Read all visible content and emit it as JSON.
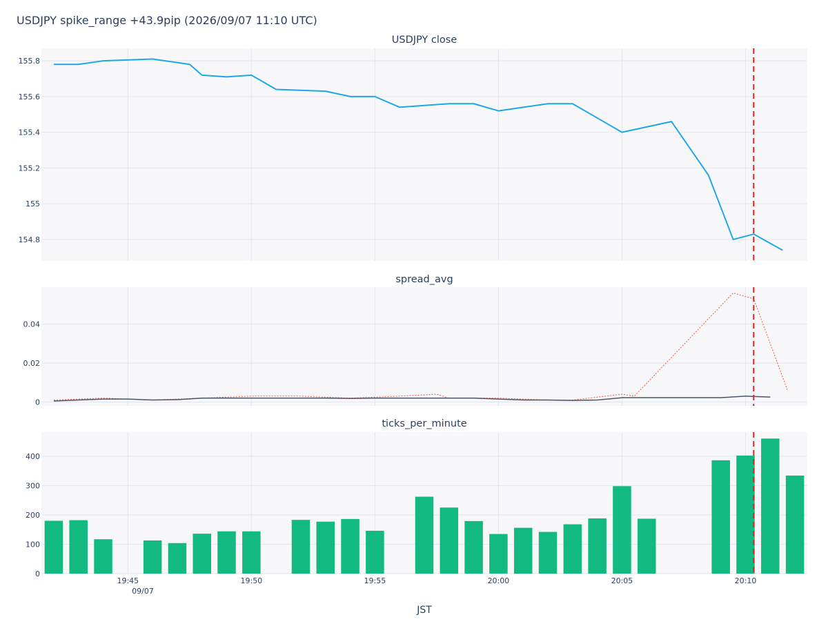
{
  "title": "USDJPY spike_range +43.9pip (2026/09/07 11:10 UTC)",
  "xlabel": "JST",
  "x_ticks": [
    "19:45",
    "19:50",
    "19:55",
    "20:00",
    "20:05",
    "20:10"
  ],
  "x_tick_date": "09/07",
  "x_domain_minutes": [
    1181.5,
    1212.5
  ],
  "spike_minute": 1210.33,
  "colors": {
    "close_line": "#1ea7e8",
    "spread_line": "#4b5567",
    "spread_dotted": "#ef553b",
    "bars": "#12b981",
    "spike": "#d62728"
  },
  "chart_data": [
    {
      "type": "line",
      "title": "USDJPY close",
      "x": [
        1182,
        1183,
        1184,
        1186,
        1187.5,
        1188,
        1189,
        1190,
        1191,
        1193,
        1194,
        1195,
        1196,
        1198,
        1199,
        1200,
        1201,
        1202,
        1203,
        1204,
        1205,
        1207,
        1208.5,
        1209.5,
        1210.33,
        1211.5
      ],
      "values": [
        155.78,
        155.78,
        155.8,
        155.81,
        155.78,
        155.72,
        155.71,
        155.72,
        155.64,
        155.63,
        155.6,
        155.6,
        155.54,
        155.56,
        155.56,
        155.52,
        155.54,
        155.56,
        155.56,
        155.48,
        155.4,
        155.46,
        155.16,
        154.8,
        154.83,
        154.74
      ],
      "ylim": [
        154.68,
        155.87
      ],
      "y_ticks": [
        "154.8",
        "155",
        "155.2",
        "155.4",
        "155.6",
        "155.8"
      ],
      "y_tick_values": [
        154.8,
        155.0,
        155.2,
        155.4,
        155.6,
        155.8
      ]
    },
    {
      "type": "line",
      "title": "spread_avg",
      "x": [
        1182,
        1183,
        1184,
        1185,
        1186,
        1187,
        1188,
        1189,
        1190,
        1191,
        1192,
        1193,
        1194,
        1195,
        1196,
        1197,
        1198,
        1199,
        1200,
        1201,
        1202,
        1203,
        1204,
        1205,
        1206,
        1207,
        1208,
        1209,
        1210,
        1211
      ],
      "values": [
        0.0005,
        0.001,
        0.0015,
        0.0015,
        0.001,
        0.0012,
        0.002,
        0.002,
        0.002,
        0.002,
        0.002,
        0.002,
        0.0018,
        0.002,
        0.002,
        0.002,
        0.002,
        0.002,
        0.0015,
        0.001,
        0.001,
        0.0008,
        0.001,
        0.0022,
        0.0022,
        0.0022,
        0.0022,
        0.0022,
        0.003,
        0.0025
      ],
      "dotted_x": [
        1182,
        1184,
        1186,
        1188,
        1190,
        1192,
        1194,
        1196,
        1197.5,
        1198,
        1200,
        1202,
        1203,
        1205,
        1205.5,
        1209.5,
        1210.33,
        1211.7
      ],
      "dotted_values": [
        0.001,
        0.002,
        0.001,
        0.002,
        0.003,
        0.003,
        0.002,
        0.003,
        0.004,
        0.002,
        0.002,
        0.001,
        0.001,
        0.004,
        0.003,
        0.056,
        0.053,
        0.006
      ],
      "ylim": [
        -0.002,
        0.059
      ],
      "y_ticks": [
        "0",
        "0.02",
        "0.04"
      ],
      "y_tick_values": [
        0,
        0.02,
        0.04
      ]
    },
    {
      "type": "bar",
      "title": "ticks_per_minute",
      "x": [
        1182,
        1183,
        1184,
        1186,
        1187,
        1188,
        1189,
        1190,
        1192,
        1193,
        1194,
        1195,
        1197,
        1198,
        1199,
        1200,
        1201,
        1202,
        1203,
        1204,
        1205,
        1206,
        1209,
        1210,
        1211,
        1212
      ],
      "values": [
        180,
        182,
        117,
        113,
        104,
        136,
        144,
        144,
        183,
        177,
        186,
        146,
        262,
        225,
        179,
        135,
        156,
        142,
        168,
        188,
        298,
        187,
        386,
        402,
        460,
        334
      ],
      "ylim": [
        0,
        482
      ],
      "y_ticks": [
        "0",
        "100",
        "200",
        "300",
        "400"
      ],
      "y_tick_values": [
        0,
        100,
        200,
        300,
        400
      ]
    }
  ]
}
